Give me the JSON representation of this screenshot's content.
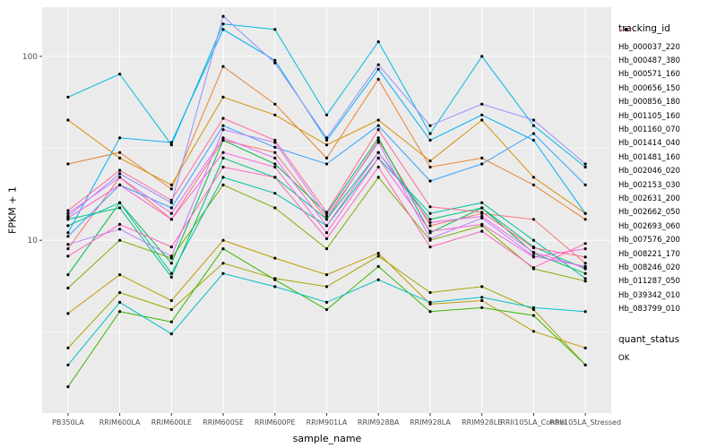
{
  "figure": {
    "background": "#FFFFFF",
    "panel_background": "#EBEBEB",
    "grid_color": "#FFFFFF",
    "tick_color": "#333333",
    "tick_label_color": "#4D4D4D",
    "text_color": "#000000"
  },
  "legend": {
    "tracking_title": "tracking_id",
    "quant_title": "quant_status",
    "quant_items": [
      {
        "label": "OK",
        "color": "#000000"
      }
    ]
  },
  "chart_data": {
    "type": "line",
    "title": "",
    "xlabel": "sample_name",
    "ylabel": "FPKM + 1",
    "y_scale": "log10",
    "ylim": [
      1.15,
      185
    ],
    "y_ticks": [
      10,
      100
    ],
    "y_tick_labels": [
      "10",
      "100"
    ],
    "y_minor": [
      3.1623,
      31.623
    ],
    "legend_position": "right",
    "point_color": "#000000",
    "grid": true,
    "x": [
      "PB350LA",
      "RRIM600LA",
      "RRIM600LE",
      "RRIM600SE",
      "RRIM600PE",
      "RRIM901LA",
      "RRIM928BA",
      "RRIM928LA",
      "RRIM928LE",
      "RRII105LA_Control",
      "RRII105LA_Stressed"
    ],
    "series": [
      {
        "name": "Hb_000037_220",
        "color": "#F8766D",
        "values": [
          9,
          22,
          13,
          35,
          30,
          13,
          35,
          12,
          14,
          13,
          7.5
        ]
      },
      {
        "name": "Hb_000487_380",
        "color": "#EA8331",
        "values": [
          26,
          30,
          19,
          88,
          55,
          28,
          75,
          25,
          28,
          20,
          13
        ]
      },
      {
        "name": "Hb_000571_160",
        "color": "#D89000",
        "values": [
          45,
          28,
          20,
          60,
          48,
          33,
          45,
          27,
          45,
          22,
          14
        ]
      },
      {
        "name": "Hb_000656_150",
        "color": "#C09B00",
        "values": [
          4,
          6.5,
          4.7,
          10,
          8,
          6.5,
          8.5,
          4.5,
          4.7,
          3.2,
          2.6
        ]
      },
      {
        "name": "Hb_000856_180",
        "color": "#A3A500",
        "values": [
          2.6,
          5.2,
          4.2,
          7.5,
          6.2,
          5.6,
          8.2,
          5.2,
          5.6,
          4.2,
          2.1
        ]
      },
      {
        "name": "Hb_001105_160",
        "color": "#7CAE00",
        "values": [
          5.5,
          10,
          8,
          20,
          15,
          9,
          22,
          10,
          12,
          7,
          6
        ]
      },
      {
        "name": "Hb_001160_070",
        "color": "#39B600",
        "values": [
          1.6,
          4.1,
          3.6,
          9,
          6.1,
          4.2,
          7.2,
          4.1,
          4.3,
          3.9,
          2.1
        ]
      },
      {
        "name": "Hb_001414_040",
        "color": "#00BB4E",
        "values": [
          6.5,
          16,
          7.5,
          35,
          26,
          14,
          36,
          11,
          15,
          8.5,
          6.6
        ]
      },
      {
        "name": "Hb_001481_160",
        "color": "#00BF7D",
        "values": [
          13,
          15,
          6.3,
          28,
          22,
          13,
          30,
          13,
          15,
          9.2,
          7
        ]
      },
      {
        "name": "Hb_002046_020",
        "color": "#00C1A3",
        "values": [
          12,
          16,
          6.6,
          22,
          18,
          12,
          28,
          14,
          16,
          10,
          6.2
        ]
      },
      {
        "name": "Hb_002153_030",
        "color": "#00BFC4",
        "values": [
          2.1,
          4.6,
          3.1,
          6.6,
          5.6,
          4.6,
          6.1,
          4.6,
          4.9,
          4.3,
          4.1
        ]
      },
      {
        "name": "Hb_002631_200",
        "color": "#00BAE0",
        "values": [
          60,
          80,
          33,
          150,
          140,
          48,
          120,
          38,
          100,
          42,
          25
        ]
      },
      {
        "name": "Hb_002662_050",
        "color": "#00B0F6",
        "values": [
          11,
          36,
          34,
          140,
          95,
          35,
          85,
          35,
          48,
          35,
          14
        ]
      },
      {
        "name": "Hb_002693_060",
        "color": "#35A2FF",
        "values": [
          10.5,
          20,
          15,
          42,
          32,
          26,
          42,
          21,
          26,
          38,
          20
        ]
      },
      {
        "name": "Hb_007576_200",
        "color": "#9590FF",
        "values": [
          13.5,
          23,
          16,
          165,
          92,
          36,
          90,
          42,
          55,
          45,
          26
        ]
      },
      {
        "name": "Hb_008221_170",
        "color": "#C77CFF",
        "values": [
          9.5,
          11.5,
          8.2,
          40,
          34,
          13.5,
          34,
          10.2,
          13.2,
          8.2,
          7.2
        ]
      },
      {
        "name": "Hb_008246_020",
        "color": "#E76BF3",
        "values": [
          14,
          22,
          14,
          36,
          28,
          12,
          30,
          12.5,
          13.5,
          8.6,
          7.1
        ]
      },
      {
        "name": "Hb_011287_050",
        "color": "#FA62DB",
        "values": [
          13.2,
          20,
          13,
          30,
          25,
          11,
          28,
          11.2,
          12.2,
          8.1,
          9
        ]
      },
      {
        "name": "Hb_039342_010",
        "color": "#FF62BC",
        "values": [
          8.2,
          12.2,
          9.2,
          25,
          22,
          10.2,
          25,
          9.2,
          11.2,
          7.1,
          9.6
        ]
      },
      {
        "name": "Hb_083799_010",
        "color": "#FF6A98",
        "values": [
          14.5,
          24,
          16.5,
          46,
          35,
          14.2,
          40,
          15.2,
          14.2,
          9.1,
          8.1
        ]
      }
    ]
  }
}
